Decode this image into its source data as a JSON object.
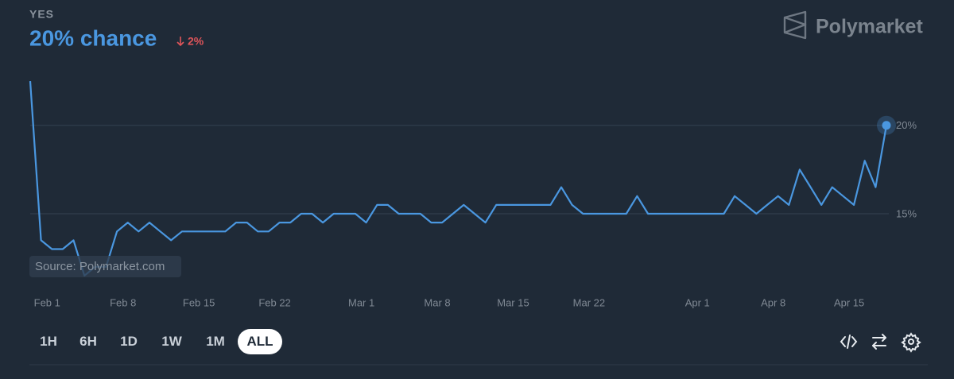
{
  "chart_data": {
    "type": "line",
    "outcome": "YES",
    "headline": "20% chance",
    "change": "2%",
    "brand": "Polymarket",
    "source": "Source: Polymarket.com",
    "ranges": [
      "1H",
      "6H",
      "1D",
      "1W",
      "1M",
      "ALL"
    ],
    "selected_range": "ALL",
    "x": [
      null,
      null,
      "Feb 1",
      null,
      null,
      null,
      null,
      null,
      null,
      "Feb 8",
      null,
      null,
      null,
      null,
      null,
      null,
      "Feb 15",
      null,
      null,
      null,
      null,
      null,
      null,
      "Feb 22",
      null,
      null,
      null,
      null,
      null,
      null,
      null,
      "Mar 1",
      null,
      null,
      null,
      null,
      null,
      null,
      "Mar 8",
      null,
      null,
      null,
      null,
      null,
      null,
      "Mar 15",
      null,
      null,
      null,
      null,
      null,
      null,
      "Mar 22",
      null,
      null,
      null,
      null,
      null,
      null,
      null,
      null,
      null,
      "Apr 1",
      null,
      null,
      null,
      null,
      null,
      null,
      "Apr 8",
      null,
      null,
      null,
      null,
      null,
      null,
      "Apr 15",
      null,
      null,
      null
    ],
    "series": [
      {
        "name": "Yes",
        "color": "#4a97e0",
        "values": [
          22.5,
          13.5,
          13,
          13,
          13.5,
          11.5,
          12,
          12,
          14,
          14.5,
          14,
          14.5,
          14,
          13.5,
          14,
          14,
          14,
          14,
          14,
          14.5,
          14.5,
          14,
          14,
          14.5,
          14.5,
          15,
          15,
          14.5,
          15,
          15,
          15,
          14.5,
          15.5,
          15.5,
          15,
          15,
          15,
          14.5,
          14.5,
          15,
          15.5,
          15,
          14.5,
          15.5,
          15.5,
          15.5,
          15.5,
          15.5,
          15.5,
          16.5,
          15.5,
          15,
          15,
          15,
          15,
          15,
          16,
          15,
          15,
          15,
          15,
          15,
          15,
          15,
          15,
          16,
          15.5,
          15,
          15.5,
          16,
          15.5,
          17.5,
          16.5,
          15.5,
          16.5,
          16,
          15.5,
          18,
          16.5,
          20
        ]
      }
    ],
    "ylim": [
      11,
      23
    ],
    "yticks": [
      {
        "value": 15,
        "label": "15%"
      },
      {
        "value": 20,
        "label": "20%"
      }
    ],
    "grid": true
  }
}
